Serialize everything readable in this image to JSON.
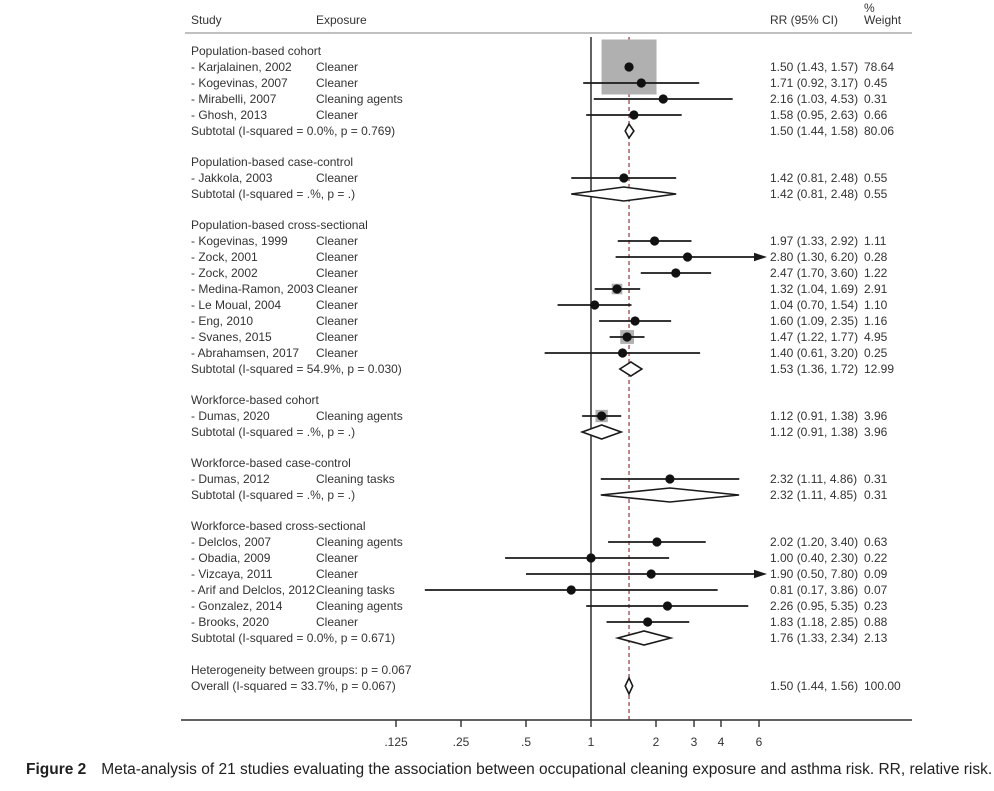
{
  "figure": {
    "caption_label": "Figure 2",
    "caption_text": "Meta-analysis of 21 studies evaluating the association between occupational cleaning exposure and asthma risk. RR, relative risk."
  },
  "columns": {
    "study": "Study",
    "exposure": "Exposure",
    "percent": "%",
    "rr": "RR (95% CI)",
    "weight": "Weight"
  },
  "chart_data": {
    "type": "forest",
    "x_scale": "log2",
    "xlabel": "",
    "ref_line": 1,
    "overall_line": 1.5,
    "x_ticks": [
      {
        "label": ".125",
        "value": 0.125
      },
      {
        "label": ".25",
        "value": 0.25
      },
      {
        "label": ".5",
        "value": 0.5
      },
      {
        "label": "1",
        "value": 1
      },
      {
        "label": "2",
        "value": 2
      },
      {
        "label": "3",
        "value": 3
      },
      {
        "label": "4",
        "value": 4
      },
      {
        "label": "6",
        "value": 6
      }
    ],
    "colors": {
      "marker": "#111111",
      "ci_line": "#1a1a1a",
      "weight_box": "#b0b0b0",
      "diamond_stroke": "#1a1a1a",
      "dashed_line": "#9a4747",
      "axis_line": "#2f2f2f",
      "header_rule": "#9a9a9a"
    },
    "groups": [
      {
        "label": "Population-based cohort",
        "rows": [
          {
            "study": "- Karjalainen, 2002",
            "exposure": "Cleaner",
            "rr": 1.5,
            "lo": 1.43,
            "hi": 1.57,
            "rr_text": "1.50 (1.43, 1.57)",
            "weight": 78.64,
            "weight_text": "78.64"
          },
          {
            "study": "- Kogevinas, 2007",
            "exposure": "Cleaner",
            "rr": 1.71,
            "lo": 0.92,
            "hi": 3.17,
            "rr_text": "1.71 (0.92, 3.17)",
            "weight": 0.45,
            "weight_text": "0.45"
          },
          {
            "study": "- Mirabelli, 2007",
            "exposure": "Cleaning agents",
            "rr": 2.16,
            "lo": 1.03,
            "hi": 4.53,
            "rr_text": "2.16 (1.03, 4.53)",
            "weight": 0.31,
            "weight_text": "0.31"
          },
          {
            "study": "- Ghosh, 2013",
            "exposure": "Cleaner",
            "rr": 1.58,
            "lo": 0.95,
            "hi": 2.63,
            "rr_text": "1.58 (0.95, 2.63)",
            "weight": 0.66,
            "weight_text": "0.66"
          }
        ],
        "subtotal": {
          "label": "Subtotal  (I-squared = 0.0%, p = 0.769)",
          "rr": 1.5,
          "lo": 1.44,
          "hi": 1.58,
          "rr_text": "1.50 (1.44, 1.58)",
          "weight_text": "80.06"
        }
      },
      {
        "label": "Population-based case-control",
        "rows": [
          {
            "study": "- Jakkola, 2003",
            "exposure": "Cleaner",
            "rr": 1.42,
            "lo": 0.81,
            "hi": 2.48,
            "rr_text": "1.42 (0.81, 2.48)",
            "weight": 0.55,
            "weight_text": "0.55"
          }
        ],
        "subtotal": {
          "label": "Subtotal  (I-squared = .%, p = .)",
          "rr": 1.42,
          "lo": 0.81,
          "hi": 2.48,
          "rr_text": "1.42 (0.81, 2.48)",
          "weight_text": "0.55"
        }
      },
      {
        "label": "Population-based cross-sectional",
        "rows": [
          {
            "study": "- Kogevinas, 1999",
            "exposure": "Cleaner",
            "rr": 1.97,
            "lo": 1.33,
            "hi": 2.92,
            "rr_text": "1.97 (1.33, 2.92)",
            "weight": 1.11,
            "weight_text": "1.11"
          },
          {
            "study": "- Zock, 2001",
            "exposure": "Cleaner",
            "rr": 2.8,
            "lo": 1.3,
            "hi": 6.2,
            "rr_text": "2.80 (1.30, 6.20)",
            "weight": 0.28,
            "weight_text": "0.28"
          },
          {
            "study": "- Zock, 2002",
            "exposure": "Cleaner",
            "rr": 2.47,
            "lo": 1.7,
            "hi": 3.6,
            "rr_text": "2.47 (1.70, 3.60)",
            "weight": 1.22,
            "weight_text": "1.22"
          },
          {
            "study": "- Medina-Ramon, 2003",
            "exposure": "Cleaner",
            "rr": 1.32,
            "lo": 1.04,
            "hi": 1.69,
            "rr_text": "1.32 (1.04, 1.69)",
            "weight": 2.91,
            "weight_text": "2.91"
          },
          {
            "study": "- Le Moual, 2004",
            "exposure": "Cleaner",
            "rr": 1.04,
            "lo": 0.7,
            "hi": 1.54,
            "rr_text": "1.04 (0.70, 1.54)",
            "weight": 1.1,
            "weight_text": "1.10"
          },
          {
            "study": "- Eng, 2010",
            "exposure": "Cleaner",
            "rr": 1.6,
            "lo": 1.09,
            "hi": 2.35,
            "rr_text": "1.60 (1.09, 2.35)",
            "weight": 1.16,
            "weight_text": "1.16"
          },
          {
            "study": "- Svanes, 2015",
            "exposure": "Cleaner",
            "rr": 1.47,
            "lo": 1.22,
            "hi": 1.77,
            "rr_text": "1.47 (1.22, 1.77)",
            "weight": 4.95,
            "weight_text": "4.95"
          },
          {
            "study": "- Abrahamsen, 2017",
            "exposure": "Cleaner",
            "rr": 1.4,
            "lo": 0.61,
            "hi": 3.2,
            "rr_text": "1.40 (0.61, 3.20)",
            "weight": 0.25,
            "weight_text": "0.25"
          }
        ],
        "subtotal": {
          "label": "Subtotal  (I-squared = 54.9%, p = 0.030)",
          "rr": 1.53,
          "lo": 1.36,
          "hi": 1.72,
          "rr_text": "1.53 (1.36, 1.72)",
          "weight_text": "12.99"
        }
      },
      {
        "label": "Workforce-based cohort",
        "rows": [
          {
            "study": "- Dumas, 2020",
            "exposure": "Cleaning agents",
            "rr": 1.12,
            "lo": 0.91,
            "hi": 1.38,
            "rr_text": "1.12 (0.91, 1.38)",
            "weight": 3.96,
            "weight_text": "3.96"
          }
        ],
        "subtotal": {
          "label": "Subtotal  (I-squared = .%, p = .)",
          "rr": 1.12,
          "lo": 0.91,
          "hi": 1.38,
          "rr_text": "1.12 (0.91, 1.38)",
          "weight_text": "3.96"
        }
      },
      {
        "label": "Workforce-based case-control",
        "rows": [
          {
            "study": "- Dumas, 2012",
            "exposure": "Cleaning tasks",
            "rr": 2.32,
            "lo": 1.11,
            "hi": 4.86,
            "rr_text": "2.32 (1.11, 4.86)",
            "weight": 0.31,
            "weight_text": "0.31"
          }
        ],
        "subtotal": {
          "label": "Subtotal  (I-squared = .%, p = .)",
          "rr": 2.32,
          "lo": 1.11,
          "hi": 4.85,
          "rr_text": "2.32 (1.11, 4.85)",
          "weight_text": "0.31"
        }
      },
      {
        "label": "Workforce-based cross-sectional",
        "rows": [
          {
            "study": "- Delclos, 2007",
            "exposure": "Cleaning agents",
            "rr": 2.02,
            "lo": 1.2,
            "hi": 3.4,
            "rr_text": "2.02 (1.20, 3.40)",
            "weight": 0.63,
            "weight_text": "0.63"
          },
          {
            "study": "- Obadia, 2009",
            "exposure": "Cleaner",
            "rr": 1.0,
            "lo": 0.4,
            "hi": 2.3,
            "rr_text": "1.00 (0.40, 2.30)",
            "weight": 0.22,
            "weight_text": "0.22"
          },
          {
            "study": "- Vizcaya, 2011",
            "exposure": "Cleaner",
            "rr": 1.9,
            "lo": 0.5,
            "hi": 7.8,
            "rr_text": "1.90 (0.50, 7.80)",
            "weight": 0.09,
            "weight_text": "0.09"
          },
          {
            "study": "- Arif and Delclos, 2012",
            "exposure": "Cleaning tasks",
            "rr": 0.81,
            "lo": 0.17,
            "hi": 3.86,
            "rr_text": "0.81 (0.17, 3.86)",
            "weight": 0.07,
            "weight_text": "0.07"
          },
          {
            "study": "- Gonzalez, 2014",
            "exposure": "Cleaning agents",
            "rr": 2.26,
            "lo": 0.95,
            "hi": 5.35,
            "rr_text": "2.26 (0.95, 5.35)",
            "weight": 0.23,
            "weight_text": "0.23"
          },
          {
            "study": "- Brooks, 2020",
            "exposure": "Cleaner",
            "rr": 1.83,
            "lo": 1.18,
            "hi": 2.85,
            "rr_text": "1.83 (1.18, 2.85)",
            "weight": 0.88,
            "weight_text": "0.88"
          }
        ],
        "subtotal": {
          "label": "Subtotal  (I-squared = 0.0%, p = 0.671)",
          "rr": 1.76,
          "lo": 1.33,
          "hi": 2.34,
          "rr_text": "1.76 (1.33, 2.34)",
          "weight_text": "2.13"
        }
      }
    ],
    "heterogeneity_note": "Heterogeneity between groups: p = 0.067",
    "overall": {
      "label": "Overall  (I-squared = 33.7%, p = 0.067)",
      "rr": 1.5,
      "lo": 1.44,
      "hi": 1.56,
      "rr_text": "1.50 (1.44, 1.56)",
      "weight_text": "100.00"
    }
  }
}
